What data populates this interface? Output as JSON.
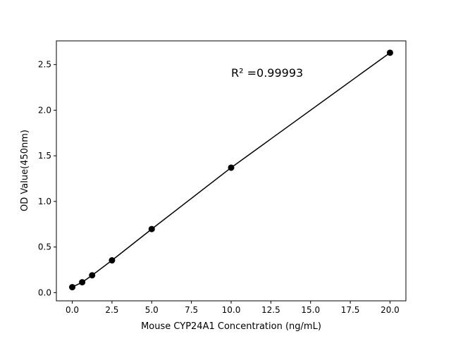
{
  "chart_data": {
    "type": "scatter",
    "title": "",
    "xlabel": "Mouse CYP24A1 Concentration (ng/mL)",
    "ylabel": "OD Value(450nm)",
    "xlim": [
      -1.0,
      21.0
    ],
    "ylim": [
      -0.09,
      2.76
    ],
    "xticks": [
      "0.0",
      "2.5",
      "5.0",
      "7.5",
      "10.0",
      "12.5",
      "15.0",
      "17.5",
      "20.0"
    ],
    "yticks": [
      "0.0",
      "0.5",
      "1.0",
      "1.5",
      "2.0",
      "2.5"
    ],
    "grid": false,
    "annotation": "R² =0.99993",
    "series": [
      {
        "x": [
          0,
          0.625,
          1.25,
          2.5,
          5,
          10,
          20
        ],
        "y": [
          0.06,
          0.114,
          0.19,
          0.354,
          0.697,
          1.37,
          2.63
        ],
        "marker": "circle",
        "line": true,
        "color": "#000000"
      }
    ]
  }
}
